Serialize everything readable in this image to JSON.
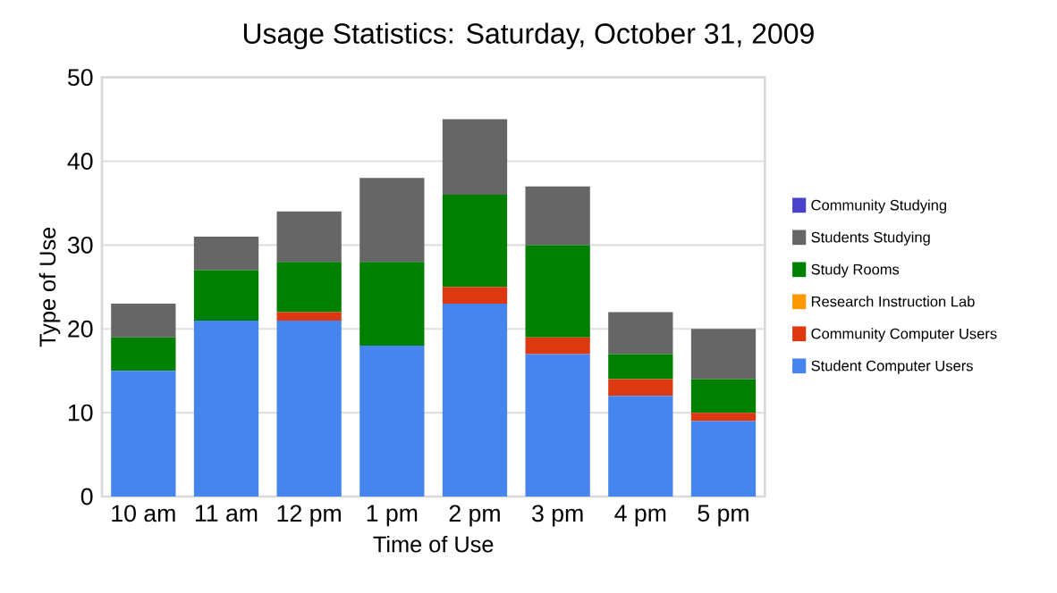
{
  "chart_data": {
    "type": "bar",
    "stacked": true,
    "title": "Usage Statistics: Saturday, October 31, 2009",
    "xlabel": "Time of Use",
    "ylabel": "Type of Use",
    "categories": [
      "10 am",
      "11 am",
      "12 pm",
      "1 pm",
      "2 pm",
      "3 pm",
      "4 pm",
      "5 pm"
    ],
    "ylim": [
      0,
      50
    ],
    "yticks": [
      0,
      10,
      20,
      30,
      40,
      50
    ],
    "grid": "y",
    "legend": "right",
    "series": [
      {
        "name": "Student Computer Users",
        "color": "#4684ee",
        "values": [
          15,
          21,
          21,
          18,
          23,
          17,
          12,
          9
        ]
      },
      {
        "name": "Community Computer Users",
        "color": "#dc3912",
        "values": [
          0,
          0,
          1,
          0,
          2,
          2,
          2,
          1
        ]
      },
      {
        "name": "Research Instruction Lab",
        "color": "#ff9900",
        "values": [
          0,
          0,
          0,
          0,
          0,
          0,
          0,
          0
        ]
      },
      {
        "name": "Study Rooms",
        "color": "#008000",
        "values": [
          4,
          6,
          6,
          10,
          11,
          11,
          3,
          4
        ]
      },
      {
        "name": "Students Studying",
        "color": "#666666",
        "values": [
          4,
          4,
          6,
          10,
          9,
          7,
          5,
          6
        ]
      },
      {
        "name": "Community Studying",
        "color": "#4942cc",
        "values": [
          0,
          0,
          0,
          0,
          0,
          0,
          0,
          0
        ]
      }
    ]
  }
}
